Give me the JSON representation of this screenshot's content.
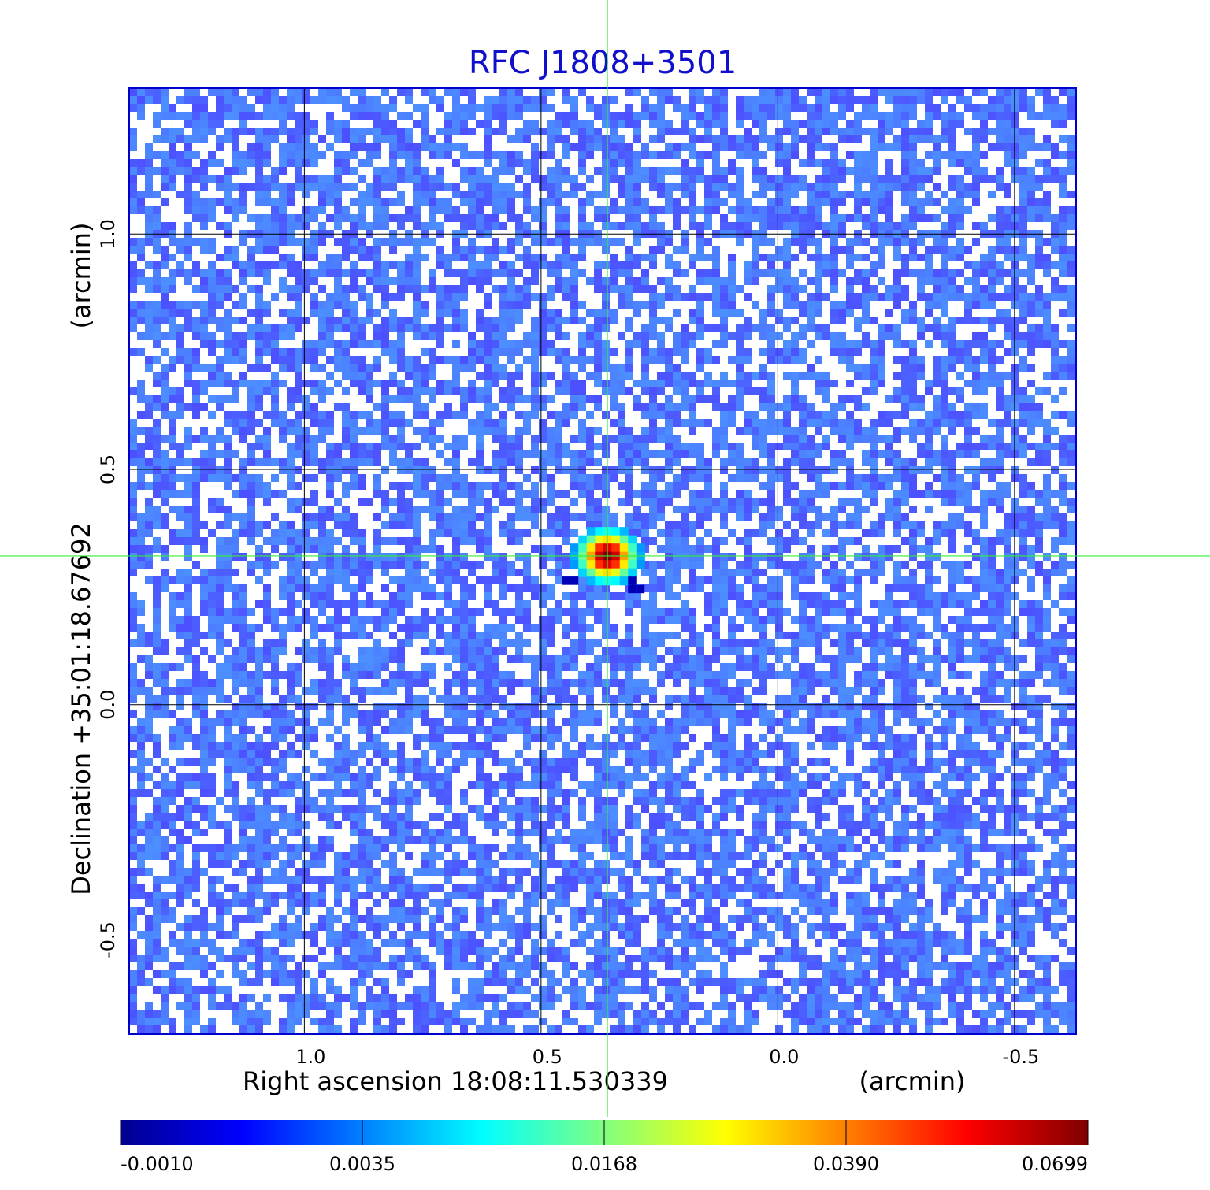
{
  "chart_data": {
    "type": "heatmap",
    "title": "RFC J1808+3501",
    "xlabel": "Right ascension  18:08:11.530339",
    "ylabel": "Declination  +35:01:18.67692",
    "x_unit": "(arcmin)",
    "y_unit": "(arcmin)",
    "x_ticks": [
      "1.0",
      "0.5",
      "0.0",
      "-0.5"
    ],
    "y_ticks": [
      "1.0",
      "0.5",
      "0.0",
      "-0.5"
    ],
    "x_tick_values": [
      1.0,
      0.5,
      0.0,
      -0.5
    ],
    "y_tick_values": [
      1.0,
      0.5,
      0.0,
      -0.5
    ],
    "xlim": [
      1.37,
      -0.63
    ],
    "ylim": [
      -0.7,
      1.31
    ],
    "grid": true,
    "source_position": {
      "x": 0.36,
      "y": 0.316
    },
    "peak_value": 0.0699,
    "background_level": 0.0012,
    "colormap": "jet",
    "colorbar_ticks": [
      "-0.0010",
      "0.0035",
      "0.0168",
      "0.0390",
      "0.0699"
    ],
    "colorbar_tick_values": [
      -0.001,
      0.0035,
      0.0168,
      0.039,
      0.0699
    ]
  },
  "colors": {
    "title": "#1010cc",
    "crosshair": "#33ee33",
    "grid": "#000000",
    "frame": "#0000cc"
  }
}
